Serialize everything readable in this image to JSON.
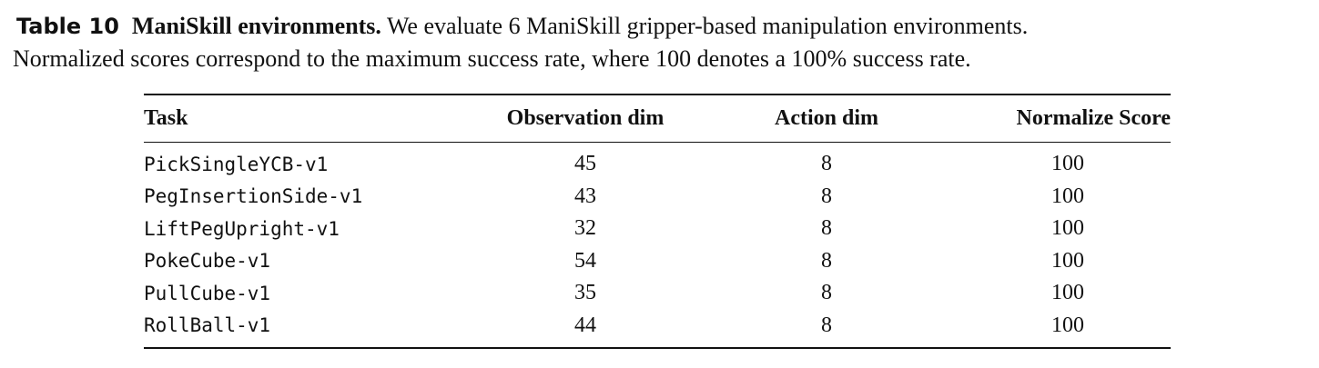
{
  "caption": {
    "label": "Table 10",
    "title": "ManiSkill environments.",
    "text": [
      "We evaluate 6 ManiSkill gripper-based manipulation environments.",
      "Normalized scores correspond to the maximum success rate, where 100 denotes a 100% success rate."
    ]
  },
  "table": {
    "columns": [
      "Task",
      "Observation dim",
      "Action dim",
      "Normalize Score"
    ],
    "rows": [
      [
        "PickSingleYCB-v1",
        45,
        8,
        100
      ],
      [
        "PegInsertionSide-v1",
        43,
        8,
        100
      ],
      [
        "LiftPegUpright-v1",
        32,
        8,
        100
      ],
      [
        "PokeCube-v1",
        54,
        8,
        100
      ],
      [
        "PullCube-v1",
        35,
        8,
        100
      ],
      [
        "RollBall-v1",
        44,
        8,
        100
      ]
    ]
  }
}
